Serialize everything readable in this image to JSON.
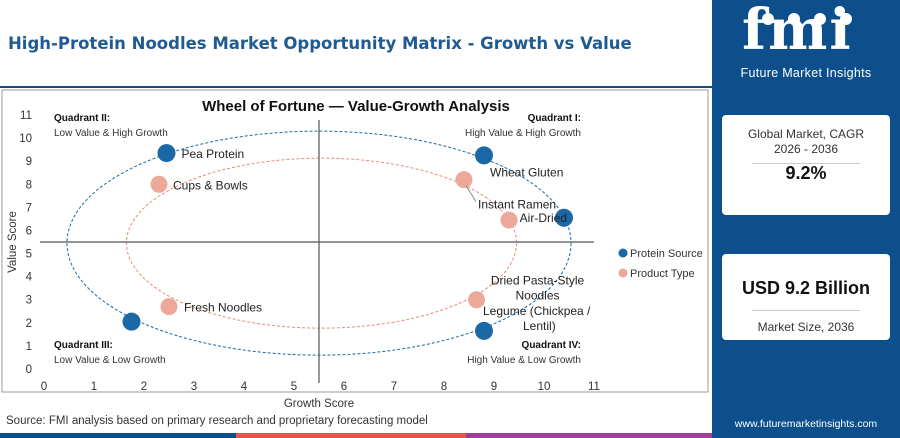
{
  "header": {
    "title": "High-Protein Noodles Market Opportunity Matrix - Growth vs Value"
  },
  "sidebar": {
    "logo_text": "fmi",
    "logo_subtitle": "Future Market Insights",
    "cards": [
      {
        "label": "Global Market, CAGR 2026 - 2036",
        "value": "9.2%"
      },
      {
        "label": "Market Size, 2036",
        "value": "USD 9.2 Billion"
      }
    ],
    "website": "www.futuremarketinsights.com"
  },
  "footer": {
    "source": "Source: FMI analysis based on primary research and proprietary forecasting model"
  },
  "colors": {
    "brand": "#0d4f8c",
    "protein_source": "#1a69a6",
    "product_type": "#eca898",
    "bar_segments": [
      "#0d4f8c",
      "#e05a4a",
      "#9e3f9a",
      "#0d4f8c"
    ]
  },
  "chart_data": {
    "type": "scatter",
    "title": "Wheel of Fortune — Value-Growth Analysis",
    "xlabel": "Growth Score",
    "ylabel": "Value Score",
    "xlim": [
      0,
      11
    ],
    "ylim": [
      0,
      11
    ],
    "xticks": [
      0,
      1,
      2,
      3,
      4,
      5,
      6,
      7,
      8,
      9,
      10,
      11
    ],
    "yticks": [
      0,
      1,
      2,
      3,
      4,
      5,
      6,
      7,
      8,
      9,
      10,
      11
    ],
    "grid": false,
    "legend_position": "right",
    "quadrant_lines": {
      "x": 5.5,
      "y": 5.5
    },
    "quadrants": [
      {
        "name": "Quadrant I:",
        "desc": "High Value & High Growth"
      },
      {
        "name": "Quadrant II:",
        "desc": "Low Value & High Growth"
      },
      {
        "name": "Quadrant III:",
        "desc": "Low Value & Low Growth"
      },
      {
        "name": "Quadrant IV:",
        "desc": "High Value & Low Growth"
      }
    ],
    "series": [
      {
        "name": "Protein Source",
        "points": [
          {
            "label": "Pea Protein",
            "x": 2.45,
            "y": 9.35
          },
          {
            "label": "Wheat Gluten",
            "x": 8.8,
            "y": 9.25
          },
          {
            "label": "Air-Dried",
            "x": 10.4,
            "y": 6.55
          },
          {
            "label": "Legume (Chickpea / Lentil)",
            "x": 8.8,
            "y": 1.65
          },
          {
            "label": "",
            "x": 1.75,
            "y": 2.05
          }
        ]
      },
      {
        "name": "Product Type",
        "points": [
          {
            "label": "Cups & Bowls",
            "x": 2.3,
            "y": 8.0
          },
          {
            "label": "Instant Ramen",
            "x": 8.4,
            "y": 8.2
          },
          {
            "label": "",
            "x": 9.3,
            "y": 6.45
          },
          {
            "label": "Fresh Noodles",
            "x": 2.5,
            "y": 2.7
          },
          {
            "label": "Dried Pasta-Style Noodles",
            "x": 8.65,
            "y": 3.0
          }
        ]
      }
    ]
  }
}
